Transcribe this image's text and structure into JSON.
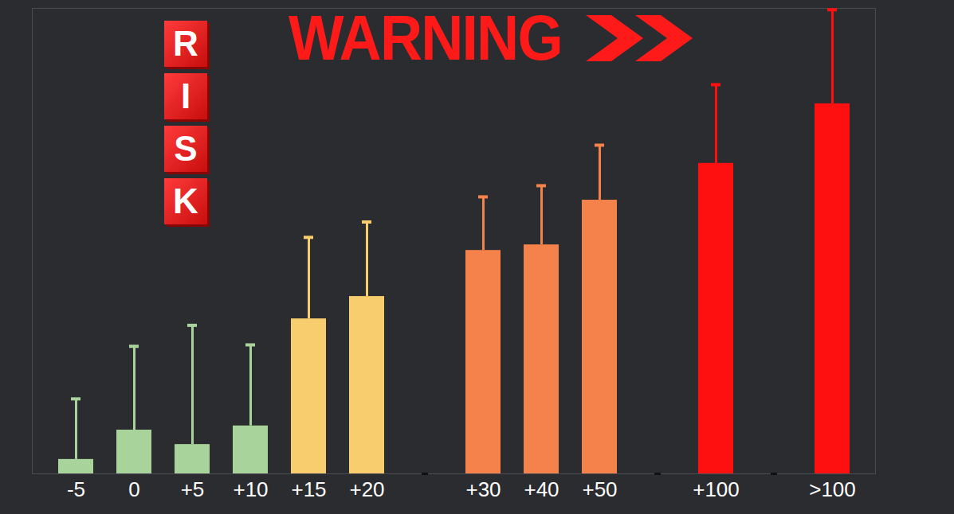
{
  "chart_data": {
    "type": "bar",
    "title": "WARNING",
    "annotations": [
      "RISK"
    ],
    "categories": [
      "-5",
      "0",
      "+5",
      "+10",
      "+15",
      "+20",
      null,
      "+30",
      "+40",
      "+50",
      null,
      "+100",
      null,
      ">100"
    ],
    "values": [
      3.1,
      9.4,
      6.3,
      10.3,
      33.3,
      38.1,
      0,
      48,
      49.2,
      58.8,
      0,
      66.7,
      0,
      79.5
    ],
    "errors": [
      13,
      18,
      25.6,
      17.4,
      17.5,
      16,
      null,
      11.5,
      12.7,
      11.8,
      null,
      16.9,
      null,
      20.2
    ],
    "colors": [
      "#a8d39a",
      "#a8d39a",
      "#a8d39a",
      "#a8d39a",
      "#f7cd6e",
      "#f7cd6e",
      "#111111",
      "#f4824a",
      "#f4824a",
      "#f4824a",
      "#111111",
      "#ff1010",
      "#111111",
      "#ff1010"
    ],
    "ylim": [
      0,
      100
    ],
    "yticks": [],
    "tick_labels": "x",
    "grid": false
  }
}
